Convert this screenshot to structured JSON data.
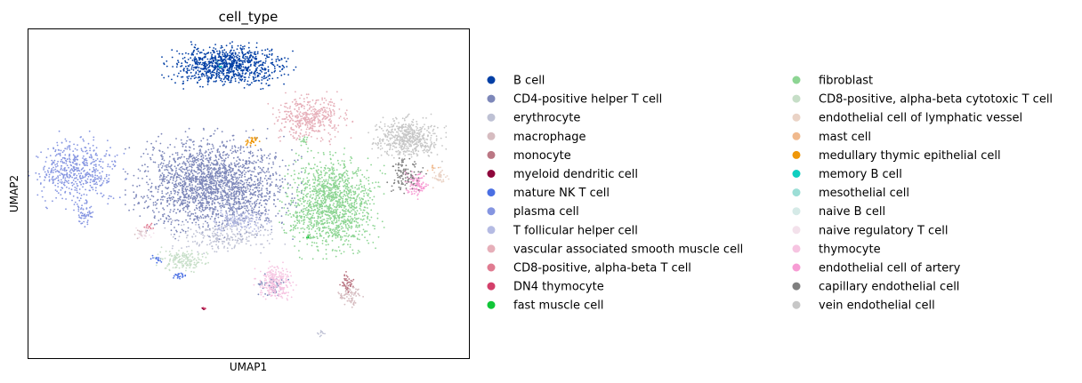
{
  "chart_data": {
    "type": "scatter",
    "title": "cell_type",
    "xlabel": "UMAP1",
    "ylabel": "UMAP2",
    "xlim": [
      0,
      100
    ],
    "ylim": [
      0,
      100
    ],
    "ticks_visible": false,
    "grid": false,
    "legend_position": "right, outside plot, two columns",
    "legend_title": "",
    "series": [
      {
        "name": "B cell",
        "color": "#023fa5",
        "clusters": [
          {
            "cx": 45.5,
            "cy": 89,
            "rx": 9.5,
            "ry": 4.5,
            "n": 900
          }
        ]
      },
      {
        "name": "CD4-positive helper T cell",
        "color": "#7d87b9",
        "clusters": [
          {
            "cx": 42,
            "cy": 53,
            "rx": 12.5,
            "ry": 10.5,
            "n": 2000
          },
          {
            "cx": 55,
            "cy": 22,
            "rx": 2.5,
            "ry": 2.5,
            "n": 60
          }
        ]
      },
      {
        "name": "erythrocyte",
        "color": "#bec1d4",
        "clusters": [
          {
            "cx": 45,
            "cy": 37,
            "rx": 9,
            "ry": 3.5,
            "n": 220
          },
          {
            "cx": 66.5,
            "cy": 7.5,
            "rx": 0.8,
            "ry": 0.8,
            "n": 10
          }
        ]
      },
      {
        "name": "macrophage",
        "color": "#d6bcc0",
        "clusters": [
          {
            "cx": 73,
            "cy": 19,
            "rx": 2,
            "ry": 2.5,
            "n": 70
          },
          {
            "cx": 26,
            "cy": 38,
            "rx": 1.2,
            "ry": 1.2,
            "n": 15
          }
        ]
      },
      {
        "name": "monocyte",
        "color": "#bb7784",
        "clusters": [
          {
            "cx": 72.5,
            "cy": 23,
            "rx": 1.2,
            "ry": 2.5,
            "n": 45
          }
        ]
      },
      {
        "name": "myeloid dendritic cell",
        "color": "#8e063b",
        "clusters": [
          {
            "cx": 40,
            "cy": 15,
            "rx": 0.4,
            "ry": 0.4,
            "n": 6
          }
        ]
      },
      {
        "name": "mature NK T cell",
        "color": "#4a6fe3",
        "clusters": [
          {
            "cx": 34.5,
            "cy": 25,
            "rx": 1.5,
            "ry": 1,
            "n": 20
          },
          {
            "cx": 29,
            "cy": 30,
            "rx": 1.5,
            "ry": 1,
            "n": 15
          }
        ]
      },
      {
        "name": "plasma cell",
        "color": "#8595e1",
        "clusters": [
          {
            "cx": 11,
            "cy": 57,
            "rx": 7,
            "ry": 7.5,
            "n": 500
          },
          {
            "cx": 13,
            "cy": 44,
            "rx": 1.5,
            "ry": 3,
            "n": 60
          }
        ]
      },
      {
        "name": "T follicular helper cell",
        "color": "#b5bbe3",
        "clusters": [
          {
            "cx": 48,
            "cy": 42,
            "rx": 5,
            "ry": 3,
            "n": 130
          }
        ]
      },
      {
        "name": "vascular associated smooth muscle cell",
        "color": "#e6afb9",
        "clusters": [
          {
            "cx": 64,
            "cy": 73,
            "rx": 6,
            "ry": 5,
            "n": 420
          }
        ]
      },
      {
        "name": "CD8-positive, alpha-beta T cell",
        "color": "#e07b91",
        "clusters": [
          {
            "cx": 27.5,
            "cy": 40,
            "rx": 1.2,
            "ry": 1.2,
            "n": 12
          }
        ]
      },
      {
        "name": "DN4 thymocyte",
        "color": "#d33f6a",
        "clusters": [
          {
            "cx": 40,
            "cy": 15,
            "rx": 0.3,
            "ry": 0.3,
            "n": 5
          }
        ]
      },
      {
        "name": "fast muscle cell",
        "color": "#11c638",
        "clusters": [
          {
            "cx": 63.5,
            "cy": 37,
            "rx": 0.5,
            "ry": 0.5,
            "n": 4
          }
        ]
      },
      {
        "name": "fibroblast",
        "color": "#8dd593",
        "clusters": [
          {
            "cx": 69,
            "cy": 47,
            "rx": 7.5,
            "ry": 10.5,
            "n": 1300
          },
          {
            "cx": 62.5,
            "cy": 66,
            "rx": 0.8,
            "ry": 1.2,
            "n": 15
          },
          {
            "cx": 60.5,
            "cy": 40,
            "rx": 1,
            "ry": 1,
            "n": 10
          }
        ]
      },
      {
        "name": "CD8-positive, alpha-beta cytotoxic T cell",
        "color": "#c6dec7",
        "clusters": [
          {
            "cx": 35,
            "cy": 30,
            "rx": 4.5,
            "ry": 2.5,
            "n": 160
          }
        ]
      },
      {
        "name": "endothelial cell of lymphatic vessel",
        "color": "#ead3c6",
        "clusters": [
          {
            "cx": 93.5,
            "cy": 55,
            "rx": 1.5,
            "ry": 2,
            "n": 40
          }
        ]
      },
      {
        "name": "mast cell",
        "color": "#f0b98d",
        "clusters": [
          {
            "cx": 92,
            "cy": 58,
            "rx": 1,
            "ry": 1,
            "n": 8
          }
        ]
      },
      {
        "name": "medullary thymic epithelial cell",
        "color": "#ef9708",
        "clusters": [
          {
            "cx": 51,
            "cy": 66,
            "rx": 1.2,
            "ry": 1,
            "n": 30
          }
        ]
      },
      {
        "name": "memory B cell",
        "color": "#0fcfc0",
        "clusters": [
          {
            "cx": 43.5,
            "cy": 89,
            "rx": 0.4,
            "ry": 0.4,
            "n": 3
          }
        ]
      },
      {
        "name": "mesothelial cell",
        "color": "#9cded6",
        "clusters": [
          {
            "cx": 43,
            "cy": 90,
            "rx": 0.3,
            "ry": 0.3,
            "n": 2
          }
        ]
      },
      {
        "name": "naive B cell",
        "color": "#d5eae7",
        "clusters": [
          {
            "cx": 48,
            "cy": 88,
            "rx": 0.4,
            "ry": 0.4,
            "n": 2
          }
        ]
      },
      {
        "name": "naive regulatory T cell",
        "color": "#f3e1eb",
        "clusters": [
          {
            "cx": 26.5,
            "cy": 38,
            "rx": 1.5,
            "ry": 1.5,
            "n": 20
          }
        ]
      },
      {
        "name": "thymocyte",
        "color": "#f6c4e1",
        "clusters": [
          {
            "cx": 56,
            "cy": 23,
            "rx": 3,
            "ry": 4,
            "n": 230
          }
        ]
      },
      {
        "name": "endothelial cell of artery",
        "color": "#f79cd4",
        "clusters": [
          {
            "cx": 88,
            "cy": 53,
            "rx": 2,
            "ry": 3,
            "n": 110
          }
        ]
      },
      {
        "name": "capillary endothelial cell",
        "color": "#7f7f7f",
        "clusters": [
          {
            "cx": 85.5,
            "cy": 56,
            "rx": 3,
            "ry": 4.5,
            "n": 110
          }
        ]
      },
      {
        "name": "vein endothelial cell",
        "color": "#c7c7c7",
        "clusters": [
          {
            "cx": 86,
            "cy": 67,
            "rx": 5.5,
            "ry": 4.5,
            "n": 550
          }
        ]
      }
    ]
  }
}
